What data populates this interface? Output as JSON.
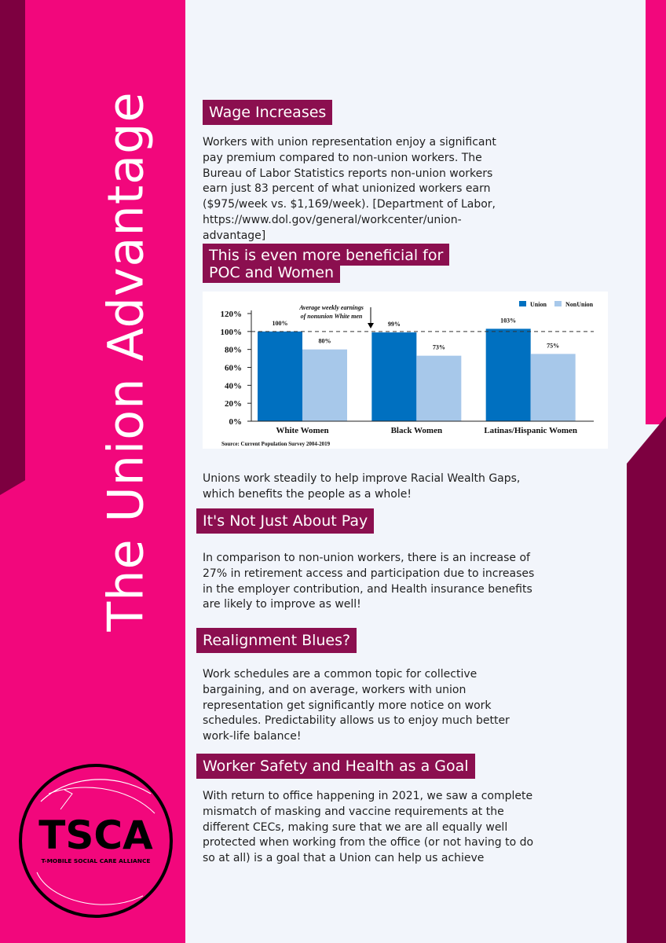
{
  "vertical_title": "The Union Advantage",
  "logo": {
    "main_text": "TSCA",
    "sub_text": "T-MOBILE SOCIAL CARE ALLIANCE"
  },
  "sections": {
    "wage": {
      "heading": "Wage Increases",
      "body": "Workers with union representation enjoy a significant pay premium compared to non-union workers. The Bureau of Labor Statistics reports non-union workers earn just 83 percent of what unionized workers earn ($975/week vs. $1,169/week). [Department of Labor, https://www.dol.gov/general/workcenter/union-advantage]"
    },
    "poc": {
      "heading_line1": "This is even more beneficial for",
      "heading_line2": "POC and Women"
    },
    "racial": {
      "body": "Unions work steadily to help improve Racial Wealth Gaps, which benefits the people as a whole!"
    },
    "pay": {
      "heading": "It's Not Just About Pay",
      "body": "In comparison to non-union workers, there is an increase of 27% in retirement access and participation due to increases in the employer contribution, and Health insurance benefits are likely to improve as well!"
    },
    "realignment": {
      "heading": "Realignment Blues?",
      "body": "Work schedules are a common topic for collective bargaining, and on average, workers with union representation get significantly more notice on work schedules. Predictability allows us to enjoy much better work-life balance!"
    },
    "safety": {
      "heading": "Worker Safety and Health as a Goal",
      "body": "With return to office happening in 2021, we saw a complete mismatch of masking and vaccine requirements at the different CECs, making sure that we are all equally well protected when working from the office (or not having to do so at all) is a goal that a Union can help us achieve"
    }
  },
  "chart_data": {
    "type": "bar",
    "categories": [
      "White Women",
      "Black Women",
      "Latinas/Hispanic Women"
    ],
    "series": [
      {
        "name": "Union",
        "values": [
          100,
          99,
          103
        ],
        "labels": [
          "100%",
          "99%",
          "103%"
        ]
      },
      {
        "name": "NonUnion",
        "values": [
          80,
          73,
          75
        ],
        "labels": [
          "80%",
          "73%",
          "75%"
        ]
      }
    ],
    "ylim": [
      0,
      120
    ],
    "yticks": [
      "0%",
      "20%",
      "40%",
      "60%",
      "80%",
      "100%",
      "120%"
    ],
    "reference_value": 100,
    "annotation_line1": "Average weekly earnings",
    "annotation_line2": "of nonunion White men",
    "source": "Source: Current Population Survey 2004-2019",
    "legend_position": "top-right",
    "colors": {
      "union": "#0070c0",
      "nonunion": "#a7c8ea"
    }
  }
}
